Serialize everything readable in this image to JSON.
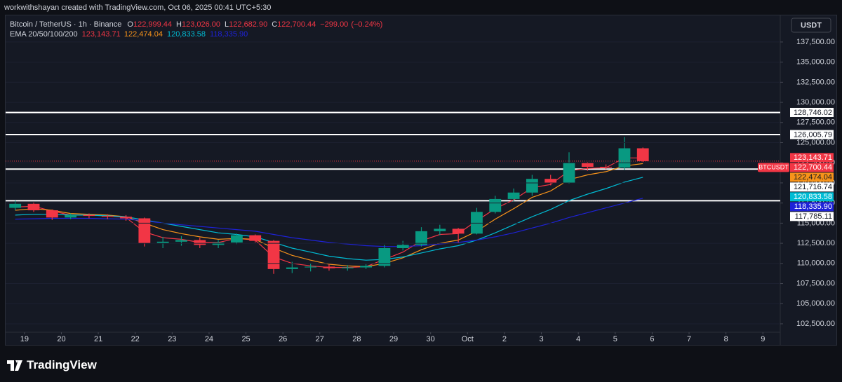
{
  "header": {
    "attribution": "workwithshayan created with TradingView.com, Oct 06, 2025 00:41 UTC+5:30",
    "logo": "TradingView"
  },
  "chart_data": {
    "type": "candlestick",
    "title": "Bitcoin / TetherUS · 1h · Binance",
    "ohlc": [
      {
        "label": "O",
        "value": 122999.44,
        "value_label": "122,999.44"
      },
      {
        "label": "H",
        "value": 123026.0,
        "value_label": "123,026.00"
      },
      {
        "label": "L",
        "value": 122682.9,
        "value_label": "122,682.90"
      },
      {
        "label": "C",
        "value": 122700.44,
        "value_label": "122,700.44"
      }
    ],
    "change": {
      "value": -299.0,
      "label": "−299.00"
    },
    "change_pct": {
      "value": -0.24,
      "label": "(−0.24%)"
    },
    "currency": "USDT",
    "symbol": "BTCUSDT",
    "up_color": "#089981",
    "down_color": "#f23645",
    "x": [
      -0.25,
      0.25,
      0.75,
      1.25,
      1.75,
      2.25,
      2.75,
      3.25,
      3.75,
      4.25,
      4.75,
      5.25,
      5.75,
      6.25,
      6.75,
      7.25,
      7.75,
      8.25,
      8.75,
      9.25,
      9.75,
      10.25,
      10.75,
      11.25,
      11.75,
      12.25,
      12.75,
      13.25,
      13.75,
      14.25,
      14.75,
      15.25,
      15.75,
      16.25,
      16.75
    ],
    "open": [
      116900,
      117400,
      116600,
      115700,
      116000,
      115900,
      115800,
      115600,
      112500,
      112700,
      112900,
      112300,
      112600,
      113500,
      112800,
      109300,
      109500,
      109600,
      109400,
      109500,
      109700,
      111900,
      112300,
      114000,
      114300,
      113700,
      116400,
      118000,
      118800,
      120500,
      120000,
      122500,
      122000,
      121900,
      124300
    ],
    "high": [
      117800,
      117600,
      116700,
      116200,
      116200,
      116100,
      116000,
      115700,
      113300,
      113400,
      113200,
      112900,
      113700,
      113600,
      112900,
      110200,
      110000,
      109900,
      109800,
      109900,
      112300,
      112800,
      114500,
      114800,
      114400,
      116900,
      118400,
      119300,
      121000,
      121000,
      123800,
      122600,
      122300,
      125700,
      124400
    ],
    "low": [
      116600,
      116400,
      115400,
      115500,
      115600,
      115500,
      115300,
      112100,
      111900,
      112200,
      111900,
      111900,
      112400,
      112600,
      108700,
      108800,
      109000,
      109100,
      109100,
      109300,
      109500,
      111600,
      112100,
      113500,
      112600,
      113600,
      116200,
      117700,
      118400,
      119700,
      119900,
      121500,
      121700,
      121600,
      122600
    ],
    "close": [
      117400,
      116600,
      115700,
      116000,
      115900,
      115800,
      115600,
      112500,
      112700,
      112900,
      112300,
      112600,
      113500,
      112800,
      109300,
      109500,
      109600,
      109400,
      109500,
      109700,
      111900,
      112300,
      114000,
      114300,
      113700,
      116400,
      118000,
      118800,
      120500,
      120000,
      122500,
      122000,
      121900,
      124300,
      122700
    ],
    "indicator": {
      "name": "EMA 20/50/100/200",
      "series": [
        {
          "color": "#f23645",
          "last": {
            "value": 123143.71,
            "label": "123,143.71"
          },
          "values": [
            117000,
            117100,
            116500,
            116000,
            116000,
            115900,
            115700,
            113900,
            113200,
            113000,
            112600,
            112600,
            113100,
            112900,
            110800,
            110000,
            109700,
            109500,
            109500,
            109600,
            110500,
            111400,
            112800,
            113600,
            113700,
            115300,
            116800,
            117900,
            119400,
            119800,
            121500,
            121800,
            121900,
            123100,
            123100
          ]
        },
        {
          "color": "#f7931a",
          "last": {
            "value": 122474.04,
            "label": "122,474.04"
          },
          "values": [
            116600,
            116800,
            116600,
            116200,
            116100,
            116000,
            115800,
            115000,
            114200,
            113700,
            113300,
            113000,
            113100,
            113000,
            111900,
            111000,
            110400,
            109900,
            109700,
            109600,
            110000,
            110700,
            111700,
            112500,
            112900,
            114000,
            115500,
            116800,
            118200,
            119000,
            120400,
            121000,
            121400,
            122100,
            122400
          ]
        },
        {
          "color": "#00bcd4",
          "last": {
            "value": 120833.58,
            "label": "120,833.58"
          },
          "values": [
            116000,
            116100,
            116100,
            116000,
            116000,
            115900,
            115800,
            115400,
            115000,
            114600,
            114200,
            113800,
            113600,
            113300,
            112600,
            111900,
            111400,
            110900,
            110600,
            110400,
            110500,
            110800,
            111300,
            111800,
            112200,
            112900,
            113800,
            114800,
            115800,
            116700,
            117800,
            118600,
            119300,
            120100,
            120700
          ]
        },
        {
          "color": "#1e22d8",
          "last": {
            "value": 118335.9,
            "label": "118,335.90"
          },
          "values": [
            115500,
            115550,
            115600,
            115600,
            115600,
            115550,
            115500,
            115300,
            115000,
            114800,
            114600,
            114400,
            114200,
            114000,
            113600,
            113200,
            112900,
            112600,
            112400,
            112200,
            112100,
            112100,
            112200,
            112400,
            112600,
            112900,
            113300,
            113800,
            114400,
            115000,
            115700,
            116300,
            116900,
            117500,
            118100
          ]
        }
      ]
    },
    "last_price": {
      "value": 122700.44,
      "label": "122,700.44"
    },
    "price_lines": [
      {
        "value": 128746.02,
        "label": "128,746.02"
      },
      {
        "value": 126005.79,
        "label": "126,005.79"
      },
      {
        "value": 121716.74,
        "label": "121,716.74"
      },
      {
        "value": 117785.11,
        "label": "117,785.11"
      }
    ],
    "ylim": [
      100060,
      140800
    ],
    "yticks": [
      {
        "value": 102500,
        "label": "102,500.00"
      },
      {
        "value": 105000,
        "label": "105,000.00"
      },
      {
        "value": 107500,
        "label": "107,500.00"
      },
      {
        "value": 110000,
        "label": "110,000.00"
      },
      {
        "value": 112500,
        "label": "112,500.00"
      },
      {
        "value": 115000,
        "label": "115,000.00"
      },
      {
        "value": 117500,
        "label": "117,500.00"
      },
      {
        "value": 120000,
        "label": "120,000.00"
      },
      {
        "value": 122500,
        "label": "122,500.00"
      },
      {
        "value": 125000,
        "label": "125,000.00"
      },
      {
        "value": 127500,
        "label": "127,500.00"
      },
      {
        "value": 130000,
        "label": "130,000.00"
      },
      {
        "value": 132500,
        "label": "132,500.00"
      },
      {
        "value": 135000,
        "label": "135,000.00"
      },
      {
        "value": 137500,
        "label": "137,500.00"
      }
    ],
    "xlim": [
      -0.51,
      20.47
    ],
    "xticks": [
      {
        "value": 0,
        "label": "19"
      },
      {
        "value": 1,
        "label": "20"
      },
      {
        "value": 2,
        "label": "21"
      },
      {
        "value": 3,
        "label": "22"
      },
      {
        "value": 4,
        "label": "23"
      },
      {
        "value": 5,
        "label": "24"
      },
      {
        "value": 6,
        "label": "25"
      },
      {
        "value": 7,
        "label": "26"
      },
      {
        "value": 8,
        "label": "27"
      },
      {
        "value": 9,
        "label": "28"
      },
      {
        "value": 10,
        "label": "29"
      },
      {
        "value": 11,
        "label": "30"
      },
      {
        "value": 12,
        "label": "Oct"
      },
      {
        "value": 13,
        "label": "2"
      },
      {
        "value": 14,
        "label": "3"
      },
      {
        "value": 15,
        "label": "4"
      },
      {
        "value": 16,
        "label": "5"
      },
      {
        "value": 17,
        "label": "6"
      },
      {
        "value": 18,
        "label": "7"
      },
      {
        "value": 19,
        "label": "8"
      },
      {
        "value": 20,
        "label": "9"
      }
    ]
  }
}
